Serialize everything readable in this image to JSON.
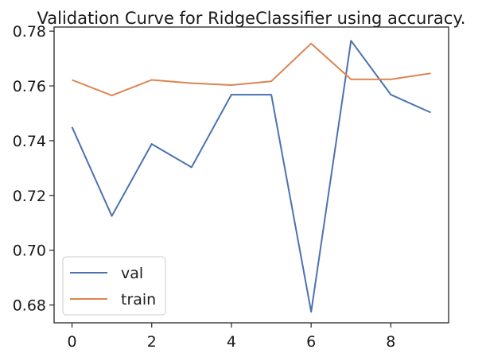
{
  "chart_data": {
    "type": "line",
    "title": "Validation Curve for RidgeClassifier using accuracy.",
    "xlabel": "",
    "ylabel": "",
    "x": [
      0,
      1,
      2,
      3,
      4,
      5,
      6,
      7,
      8,
      9
    ],
    "series": [
      {
        "name": "val",
        "color": "#4c72b0",
        "values": [
          0.745,
          0.7125,
          0.7388,
          0.7303,
          0.7568,
          0.7568,
          0.6775,
          0.7765,
          0.7568,
          0.7503
        ]
      },
      {
        "name": "train",
        "color": "#dd8452",
        "values": [
          0.7622,
          0.7565,
          0.7622,
          0.761,
          0.7603,
          0.7617,
          0.7755,
          0.7624,
          0.7624,
          0.7646
        ]
      }
    ],
    "xlim": [
      -0.45,
      9.45
    ],
    "ylim": [
      0.6735,
      0.7815
    ],
    "xticks": [
      0,
      2,
      4,
      6,
      8
    ],
    "yticks": [
      0.68,
      0.7,
      0.72,
      0.74,
      0.76,
      0.78
    ],
    "ytick_labels": [
      "0.68",
      "0.70",
      "0.72",
      "0.74",
      "0.76",
      "0.78"
    ],
    "grid": false,
    "legend_position": "lower-left"
  }
}
